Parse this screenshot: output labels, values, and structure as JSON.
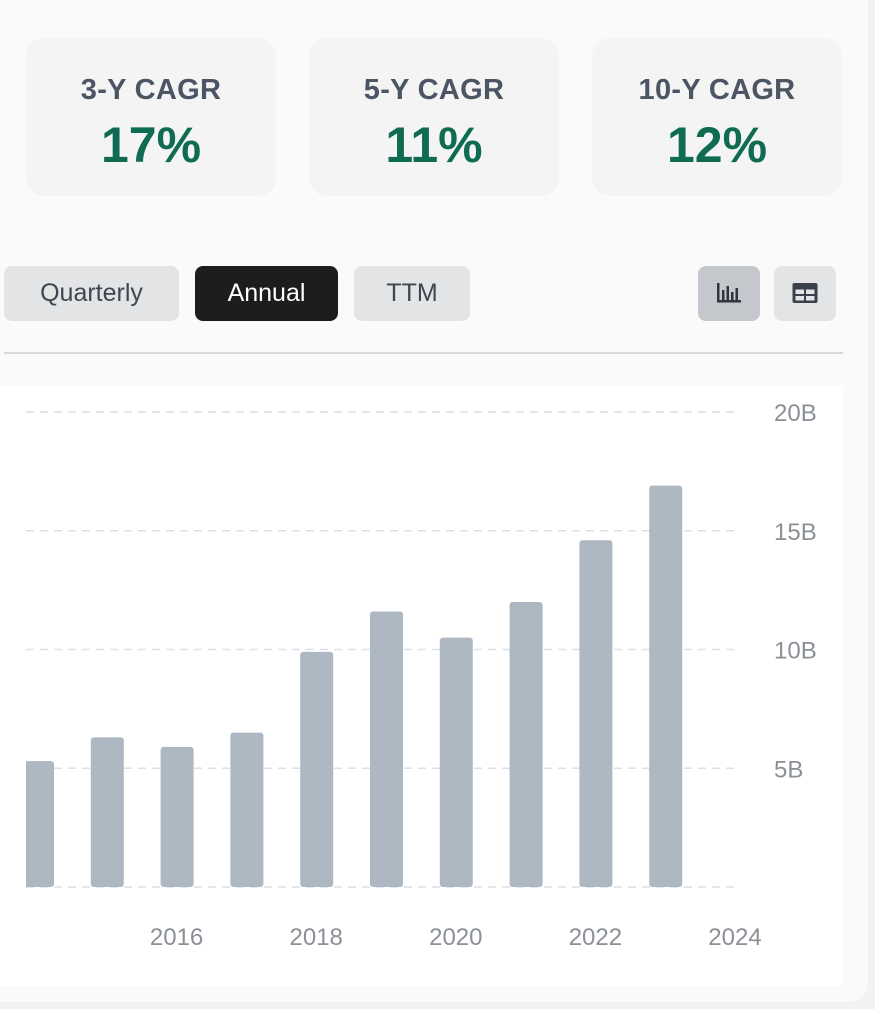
{
  "kpis": [
    {
      "label": "3-Y CAGR",
      "value": "17%"
    },
    {
      "label": "5-Y CAGR",
      "value": "11%"
    },
    {
      "label": "10-Y CAGR",
      "value": "12%"
    }
  ],
  "period_toggles": {
    "quarterly": "Quarterly",
    "annual": "Annual",
    "ttm": "TTM",
    "selected": "Annual"
  },
  "view_buttons": {
    "chart_icon": "bar-chart-icon",
    "table_icon": "table-icon",
    "selected": "chart"
  },
  "colors": {
    "accent_green": "#0f6b51",
    "bar": "#adb8c2",
    "active_toggle": "#1c1d1f"
  },
  "chart_data": {
    "type": "bar",
    "categories": [
      2014,
      2015,
      2016,
      2017,
      2018,
      2019,
      2020,
      2021,
      2022,
      2023
    ],
    "values": [
      5.3,
      6.3,
      5.9,
      6.5,
      9.9,
      11.6,
      10.5,
      12.0,
      14.6,
      16.9
    ],
    "x_tick_labels": [
      "2016",
      "2018",
      "2020",
      "2022",
      "2024"
    ],
    "x_tick_values": [
      2016,
      2018,
      2020,
      2022,
      2024
    ],
    "y_tick_labels": [
      "5B",
      "10B",
      "15B",
      "20B"
    ],
    "y_tick_values": [
      5,
      10,
      15,
      20
    ],
    "ylim": [
      0,
      20
    ],
    "xlim": [
      2014,
      2024
    ],
    "grid": "horizontal-dashed",
    "y_axis_side": "right",
    "legend": "none",
    "title": "",
    "xlabel": "",
    "ylabel": ""
  }
}
